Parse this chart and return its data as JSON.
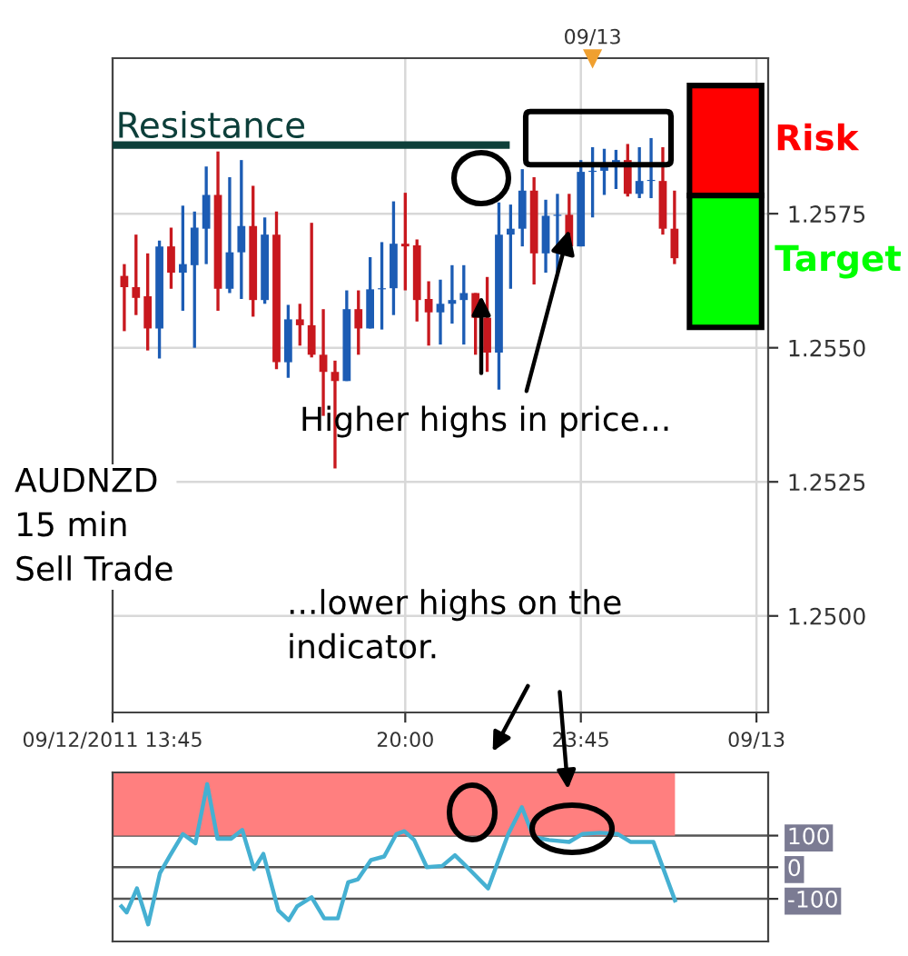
{
  "chart_data": [
    {
      "type": "candlestick",
      "x": [
        14.0,
        14.25,
        14.5,
        14.75,
        15.0,
        15.25,
        15.5,
        15.75,
        16.0,
        16.25,
        16.5,
        16.75,
        17.0,
        17.25,
        17.5,
        17.75,
        18.0,
        18.25,
        18.5,
        18.75,
        19.0,
        19.25,
        19.5,
        19.75,
        20.0,
        20.25,
        20.5,
        20.75,
        21.0,
        21.25,
        21.5,
        21.75,
        22.0,
        22.25,
        22.5,
        22.75,
        23.0,
        23.25,
        23.5,
        23.75,
        24.0,
        24.25,
        24.5,
        24.75,
        25.0,
        25.25,
        25.5,
        25.75
      ],
      "ohlc": [
        [
          1.25634,
          1.25656,
          1.25531,
          1.25613
        ],
        [
          1.25613,
          1.25711,
          1.25561,
          1.25593
        ],
        [
          1.25596,
          1.25676,
          1.25495,
          1.25536
        ],
        [
          1.25536,
          1.257,
          1.2548,
          1.25689
        ],
        [
          1.25689,
          1.25724,
          1.2561,
          1.2564
        ],
        [
          1.2564,
          1.25765,
          1.25569,
          1.25656
        ],
        [
          1.25654,
          1.25754,
          1.255,
          1.25724
        ],
        [
          1.25722,
          1.25838,
          1.25656,
          1.25785
        ],
        [
          1.25785,
          1.25866,
          1.25569,
          1.2561
        ],
        [
          1.2561,
          1.25818,
          1.25602,
          1.25678
        ],
        [
          1.25678,
          1.2585,
          1.25591,
          1.25727
        ],
        [
          1.25727,
          1.25802,
          1.25558,
          1.25589
        ],
        [
          1.25589,
          1.25743,
          1.25582,
          1.25711
        ],
        [
          1.25711,
          1.25754,
          1.2546,
          1.25473
        ],
        [
          1.25473,
          1.2558,
          1.25444,
          1.25553
        ],
        [
          1.25553,
          1.25582,
          1.25504,
          1.25542
        ],
        [
          1.25542,
          1.25733,
          1.25482,
          1.25487
        ],
        [
          1.25487,
          1.25572,
          1.25373,
          1.25455
        ],
        [
          1.25455,
          1.25476,
          1.25275,
          1.25438
        ],
        [
          1.25438,
          1.25607,
          1.25438,
          1.25572
        ],
        [
          1.25572,
          1.25607,
          1.25487,
          1.25536
        ],
        [
          1.25536,
          1.25669,
          1.25536,
          1.25609
        ],
        [
          1.25609,
          1.25697,
          1.25534,
          1.25611
        ],
        [
          1.25611,
          1.25773,
          1.25561,
          1.25694
        ],
        [
          1.25694,
          1.25789,
          1.25607,
          1.25689
        ],
        [
          1.25691,
          1.25702,
          1.25549,
          1.25589
        ],
        [
          1.25591,
          1.25624,
          1.25504,
          1.25566
        ],
        [
          1.25566,
          1.25627,
          1.25506,
          1.25582
        ],
        [
          1.25582,
          1.25654,
          1.25545,
          1.25589
        ],
        [
          1.25589,
          1.25654,
          1.25506,
          1.25602
        ],
        [
          1.25602,
          1.25602,
          1.25487,
          1.25556
        ],
        [
          1.25556,
          1.25632,
          1.25455,
          1.25491
        ],
        [
          1.25491,
          1.25771,
          1.25422,
          1.25711
        ],
        [
          1.25711,
          1.25767,
          1.2561,
          1.25722
        ],
        [
          1.25722,
          1.25833,
          1.25689,
          1.25793
        ],
        [
          1.25793,
          1.25818,
          1.25618,
          1.25676
        ],
        [
          1.25676,
          1.25776,
          1.2564,
          1.25746
        ],
        [
          1.25746,
          1.25787,
          1.2564,
          1.25748
        ],
        [
          1.25748,
          1.25787,
          1.25684,
          1.25689
        ],
        [
          1.25689,
          1.2585,
          1.25689,
          1.25828
        ],
        [
          1.25828,
          1.25874,
          1.25743,
          1.2583
        ],
        [
          1.2583,
          1.25871,
          1.25785,
          1.25838
        ],
        [
          1.25838,
          1.25869,
          1.25796,
          1.2585
        ],
        [
          1.2585,
          1.2588,
          1.25782,
          1.25787
        ],
        [
          1.25787,
          1.25874,
          1.25779,
          1.25811
        ],
        [
          1.25811,
          1.25891,
          1.25779,
          1.25813
        ],
        [
          1.25811,
          1.25874,
          1.25711,
          1.25722
        ],
        [
          1.25722,
          1.25793,
          1.25656,
          1.25667
        ]
      ],
      "colors": [
        "#c8181e",
        "#c8181e",
        "#c8181e",
        "#1c5cb4",
        "#c8181e",
        "#1c5cb4",
        "#1c5cb4",
        "#1c5cb4",
        "#c8181e",
        "#1c5cb4",
        "#1c5cb4",
        "#c8181e",
        "#1c5cb4",
        "#c8181e",
        "#1c5cb4",
        "#c8181e",
        "#c8181e",
        "#c8181e",
        "#c8181e",
        "#1c5cb4",
        "#c8181e",
        "#1c5cb4",
        "#1c5cb4",
        "#1c5cb4",
        "#c8181e",
        "#c8181e",
        "#c8181e",
        "#1c5cb4",
        "#1c5cb4",
        "#1c5cb4",
        "#c8181e",
        "#c8181e",
        "#1c5cb4",
        "#1c5cb4",
        "#1c5cb4",
        "#c8181e",
        "#1c5cb4",
        "#1c5cb4",
        "#c8181e",
        "#1c5cb4",
        "#1c5cb4",
        "#1c5cb4",
        "#1c5cb4",
        "#c8181e",
        "#1c5cb4",
        "#1c5cb4",
        "#c8181e",
        "#c8181e"
      ],
      "xlim": [
        13.75,
        27.75
      ],
      "xticks": [
        {
          "value": 13.75,
          "label": "09/12/2011 13:45"
        },
        {
          "value": 20.0,
          "label": "20:00"
        },
        {
          "value": 23.75,
          "label": "23:45"
        },
        {
          "value": 27.5,
          "label": "09/13"
        }
      ],
      "ylim": [
        1.2482,
        1.2604
      ],
      "yticks": [
        {
          "value": 1.25,
          "label": "1.2500"
        },
        {
          "value": 1.2525,
          "label": "1.2525"
        },
        {
          "value": 1.255,
          "label": "1.2550"
        },
        {
          "value": 1.2575,
          "label": "1.2575"
        }
      ],
      "grid": true,
      "ref_lines": [
        {
          "axis": "y",
          "value": 1.25878,
          "label": "Resistance",
          "color": "#0d3f3a"
        }
      ],
      "bands": [
        {
          "axis": "y",
          "from": 1.25784,
          "to": 1.25989,
          "label": "Risk",
          "color": "#ff0000"
        },
        {
          "axis": "y",
          "from": 1.25538,
          "to": 1.25784,
          "label": "Target",
          "color": "#00ff00"
        }
      ],
      "annotations": [
        {
          "text": "09/13",
          "x": 24.0,
          "y": 1.2604
        },
        {
          "text": "Higher highs in price...",
          "x": 23.5,
          "y": 1.2572
        },
        "AUDNZD\n15 min\nSell Trade",
        "...lower highs on the\nindicator."
      ]
    },
    {
      "type": "line",
      "x": [
        13.94,
        14.05,
        14.27,
        14.51,
        14.76,
        14.98,
        15.25,
        15.52,
        15.77,
        15.99,
        16.28,
        16.52,
        16.77,
        16.97,
        17.29,
        17.51,
        17.69,
        18.0,
        18.27,
        18.56,
        18.78,
        18.99,
        19.27,
        19.55,
        19.81,
        19.98,
        20.19,
        20.46,
        20.79,
        21.06,
        21.39,
        21.77,
        22.2,
        22.49,
        22.74,
        23.07,
        23.5,
        23.78,
        24.16,
        24.54,
        24.81,
        25.3,
        25.76
      ],
      "series": [
        {
          "color": "#45b0d2",
          "values": [
            -124,
            -143,
            -67,
            -181,
            -19,
            38,
            105,
            76,
            263,
            90,
            90,
            118,
            -6,
            42,
            -137,
            -168,
            -124,
            -95,
            -162,
            -162,
            -48,
            -38,
            23,
            34,
            105,
            114,
            86,
            0,
            4,
            38,
            -10,
            -67,
            105,
            190,
            95,
            86,
            80,
            105,
            109,
            105,
            80,
            80,
            -105
          ]
        }
      ],
      "xlim": [
        13.75,
        27.75
      ],
      "ylim": [
        -235,
        300
      ],
      "yticks": [
        {
          "value": 100,
          "label": "100"
        },
        {
          "value": 0,
          "label": "0"
        },
        {
          "value": -100,
          "label": "-100"
        }
      ],
      "grid": "y",
      "tick_labels": "y",
      "bands": [
        {
          "axis": "y",
          "from": 100,
          "to": 300,
          "color": "#ff7f7f"
        }
      ]
    }
  ]
}
